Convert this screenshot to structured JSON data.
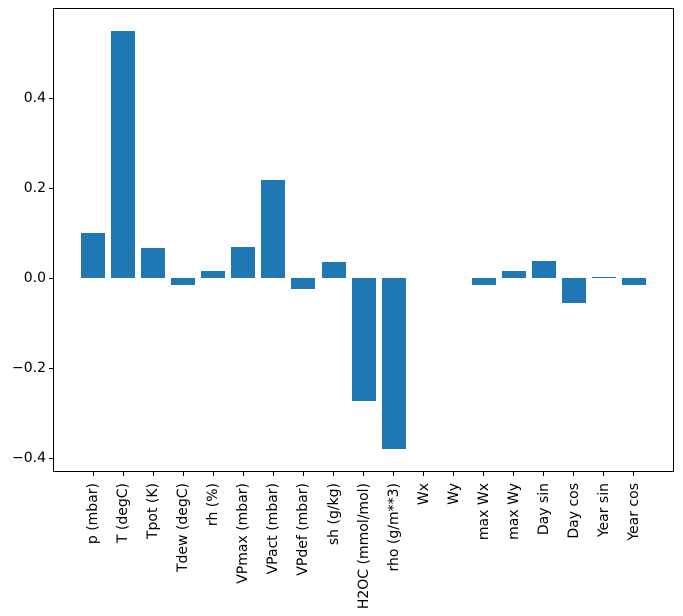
{
  "chart_data": {
    "type": "bar",
    "title": "",
    "xlabel": "",
    "ylabel": "",
    "categories": [
      "p (mbar)",
      "T (degC)",
      "Tpot (K)",
      "Tdew (degC)",
      "rh (%)",
      "VPmax (mbar)",
      "VPact (mbar)",
      "VPdef (mbar)",
      "sh (g/kg)",
      "H2OC (mmol/mol)",
      "rho (g/m**3)",
      "Wx",
      "Wy",
      "max Wx",
      "max Wy",
      "Day sin",
      "Day cos",
      "Year sin",
      "Year cos"
    ],
    "values": [
      0.1,
      0.548,
      0.066,
      -0.016,
      0.015,
      0.068,
      0.219,
      -0.024,
      0.036,
      -0.274,
      -0.38,
      0.0,
      0.0,
      -0.016,
      0.016,
      0.037,
      -0.055,
      0.003,
      -0.016
    ],
    "bar_color": "#1f77b4",
    "axis_color": "#000000",
    "background_color": "#ffffff",
    "bar_width": 0.8,
    "xlim": [
      -1.34,
      19.34
    ],
    "ylim": [
      -0.431,
      0.6
    ],
    "yticks": [
      0.4,
      0.2,
      0.0,
      -0.2,
      -0.4
    ],
    "ytick_labels": [
      "0.4",
      "0.2",
      "0.0",
      "−0.2",
      "−0.4"
    ],
    "x_tick_rotation": 90,
    "grid": false,
    "legend": "none"
  }
}
